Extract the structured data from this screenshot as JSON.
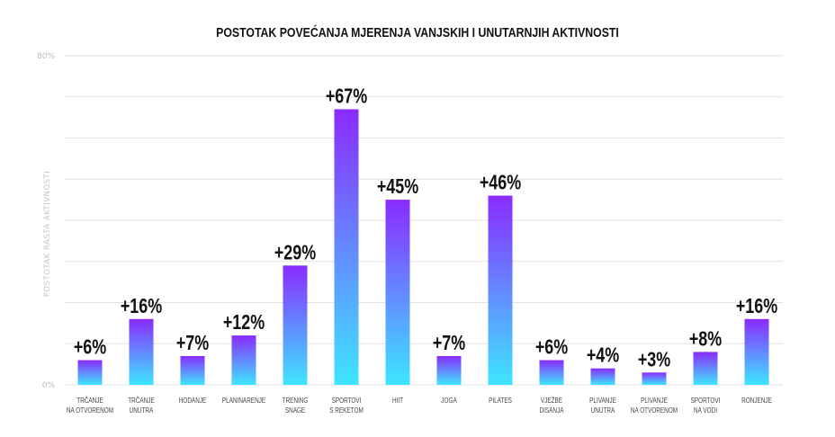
{
  "chart_data": {
    "type": "bar",
    "title": "POSTOTAK POVEĆANJA MJERENJA VANJSKIH I UNUTARNJIH AKTIVNOSTI",
    "xlabel": "",
    "ylabel": "POSTOTAK RASTA AKTIVNOSTI",
    "ylim": [
      0,
      80
    ],
    "yticks": [
      "0%",
      "80%"
    ],
    "grid": true,
    "categories": [
      [
        "TRČANJE",
        "NA OTVORENOM"
      ],
      [
        "TRČANJE",
        "UNUTRA"
      ],
      [
        "HODANJE"
      ],
      [
        "PLANINARENJE"
      ],
      [
        "TRENING",
        "SNAGE"
      ],
      [
        "SPORTOVI",
        "S REKETOM"
      ],
      [
        "HIIT"
      ],
      [
        "JOGA"
      ],
      [
        "PILATES"
      ],
      [
        "VJEŽBE",
        "DISANJA"
      ],
      [
        "PLIVANJE",
        "UNUTRA"
      ],
      [
        "PLIVANJE",
        "NA OTVORENOM"
      ],
      [
        "SPORTOVI",
        "NA VODI"
      ],
      [
        "RONJENJE"
      ]
    ],
    "values": [
      6,
      16,
      7,
      12,
      29,
      67,
      45,
      7,
      46,
      6,
      4,
      3,
      8,
      16
    ],
    "data_labels": [
      "+6%",
      "+16%",
      "+7%",
      "+12%",
      "+29%",
      "+67%",
      "+45%",
      "+7%",
      "+46%",
      "+6%",
      "+4%",
      "+3%",
      "+8%",
      "+16%"
    ],
    "colors": {
      "bar_top": "#8a2bff",
      "bar_bottom": "#3ee6ff"
    }
  }
}
